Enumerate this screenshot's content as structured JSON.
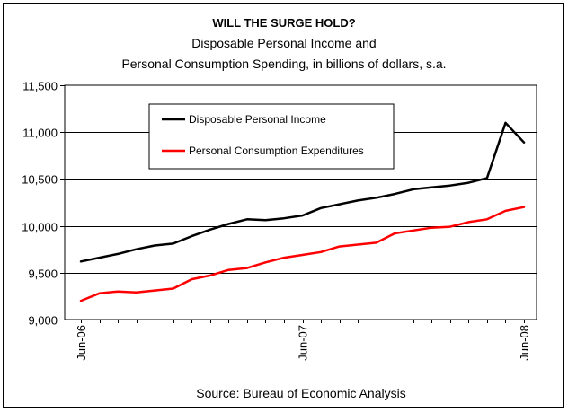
{
  "chart_data": {
    "type": "line",
    "title": "WILL THE SURGE HOLD?",
    "subtitle": [
      "Disposable Personal Income and",
      "Personal Consumption Spending, in billions of dollars, s.a."
    ],
    "source": "Source: Bureau of Economic Analysis",
    "ylim": [
      9000,
      11500
    ],
    "yticks": [
      "9,000",
      "9,500",
      "10,000",
      "10,500",
      "11,000",
      "11,500"
    ],
    "ytick_values": [
      9000,
      9500,
      10000,
      10500,
      11000,
      11500
    ],
    "grid": true,
    "legend_placement": "upper-left inside plot",
    "x": [
      "Jun-06",
      "Jul-06",
      "Aug-06",
      "Sep-06",
      "Oct-06",
      "Nov-06",
      "Dec-06",
      "Jan-07",
      "Feb-07",
      "Mar-07",
      "Apr-07",
      "May-07",
      "Jun-07",
      "Jul-07",
      "Aug-07",
      "Sep-07",
      "Oct-07",
      "Nov-07",
      "Dec-07",
      "Jan-08",
      "Feb-08",
      "Mar-08",
      "Apr-08",
      "May-08",
      "Jun-08"
    ],
    "xtick_labels": [
      "Jun-06",
      "Jun-07",
      "Jun-08"
    ],
    "xtick_indices": [
      0,
      12,
      24
    ],
    "series": [
      {
        "name": "Disposable Personal Income",
        "color": "#000000",
        "values": [
          9620,
          9660,
          9700,
          9750,
          9790,
          9810,
          9890,
          9960,
          10020,
          10070,
          10060,
          10080,
          10110,
          10190,
          10230,
          10270,
          10300,
          10340,
          10390,
          10410,
          10430,
          10460,
          10510,
          11100,
          10890
        ]
      },
      {
        "name": "Personal Consumption Expenditures",
        "color": "#ff0000",
        "values": [
          9200,
          9280,
          9300,
          9290,
          9310,
          9330,
          9430,
          9470,
          9530,
          9550,
          9610,
          9660,
          9690,
          9720,
          9780,
          9800,
          9820,
          9920,
          9950,
          9980,
          9990,
          10040,
          10070,
          10160,
          10200
        ]
      }
    ]
  }
}
